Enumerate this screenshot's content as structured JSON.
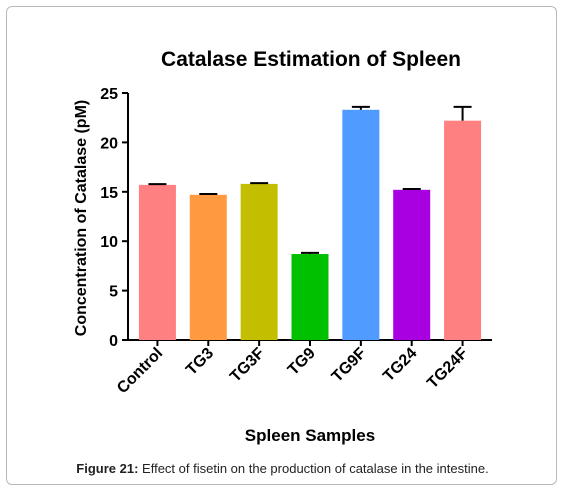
{
  "chart_data": {
    "type": "bar",
    "title": "Catalase Estimation of Spleen",
    "xlabel": "Spleen Samples",
    "ylabel": "Concentration of Catalase (pM)",
    "ylim": [
      0,
      25
    ],
    "yticks": [
      0,
      5,
      10,
      15,
      20,
      25
    ],
    "categories": [
      "Control",
      "TG3",
      "TG3F",
      "TG9",
      "TG9F",
      "TG24",
      "TG24F"
    ],
    "values": [
      15.7,
      14.7,
      15.8,
      8.7,
      23.3,
      15.2,
      22.2
    ],
    "errors": [
      0.08,
      0.08,
      0.08,
      0.12,
      0.3,
      0.08,
      1.4
    ],
    "colors": [
      "#ff8080",
      "#ff9a40",
      "#c4be00",
      "#00c000",
      "#4f9bff",
      "#a800e0",
      "#ff8080"
    ],
    "grid": false
  },
  "caption": {
    "label": "Figure 21:",
    "text": " Effect of fisetin on the production of catalase in the intestine."
  }
}
